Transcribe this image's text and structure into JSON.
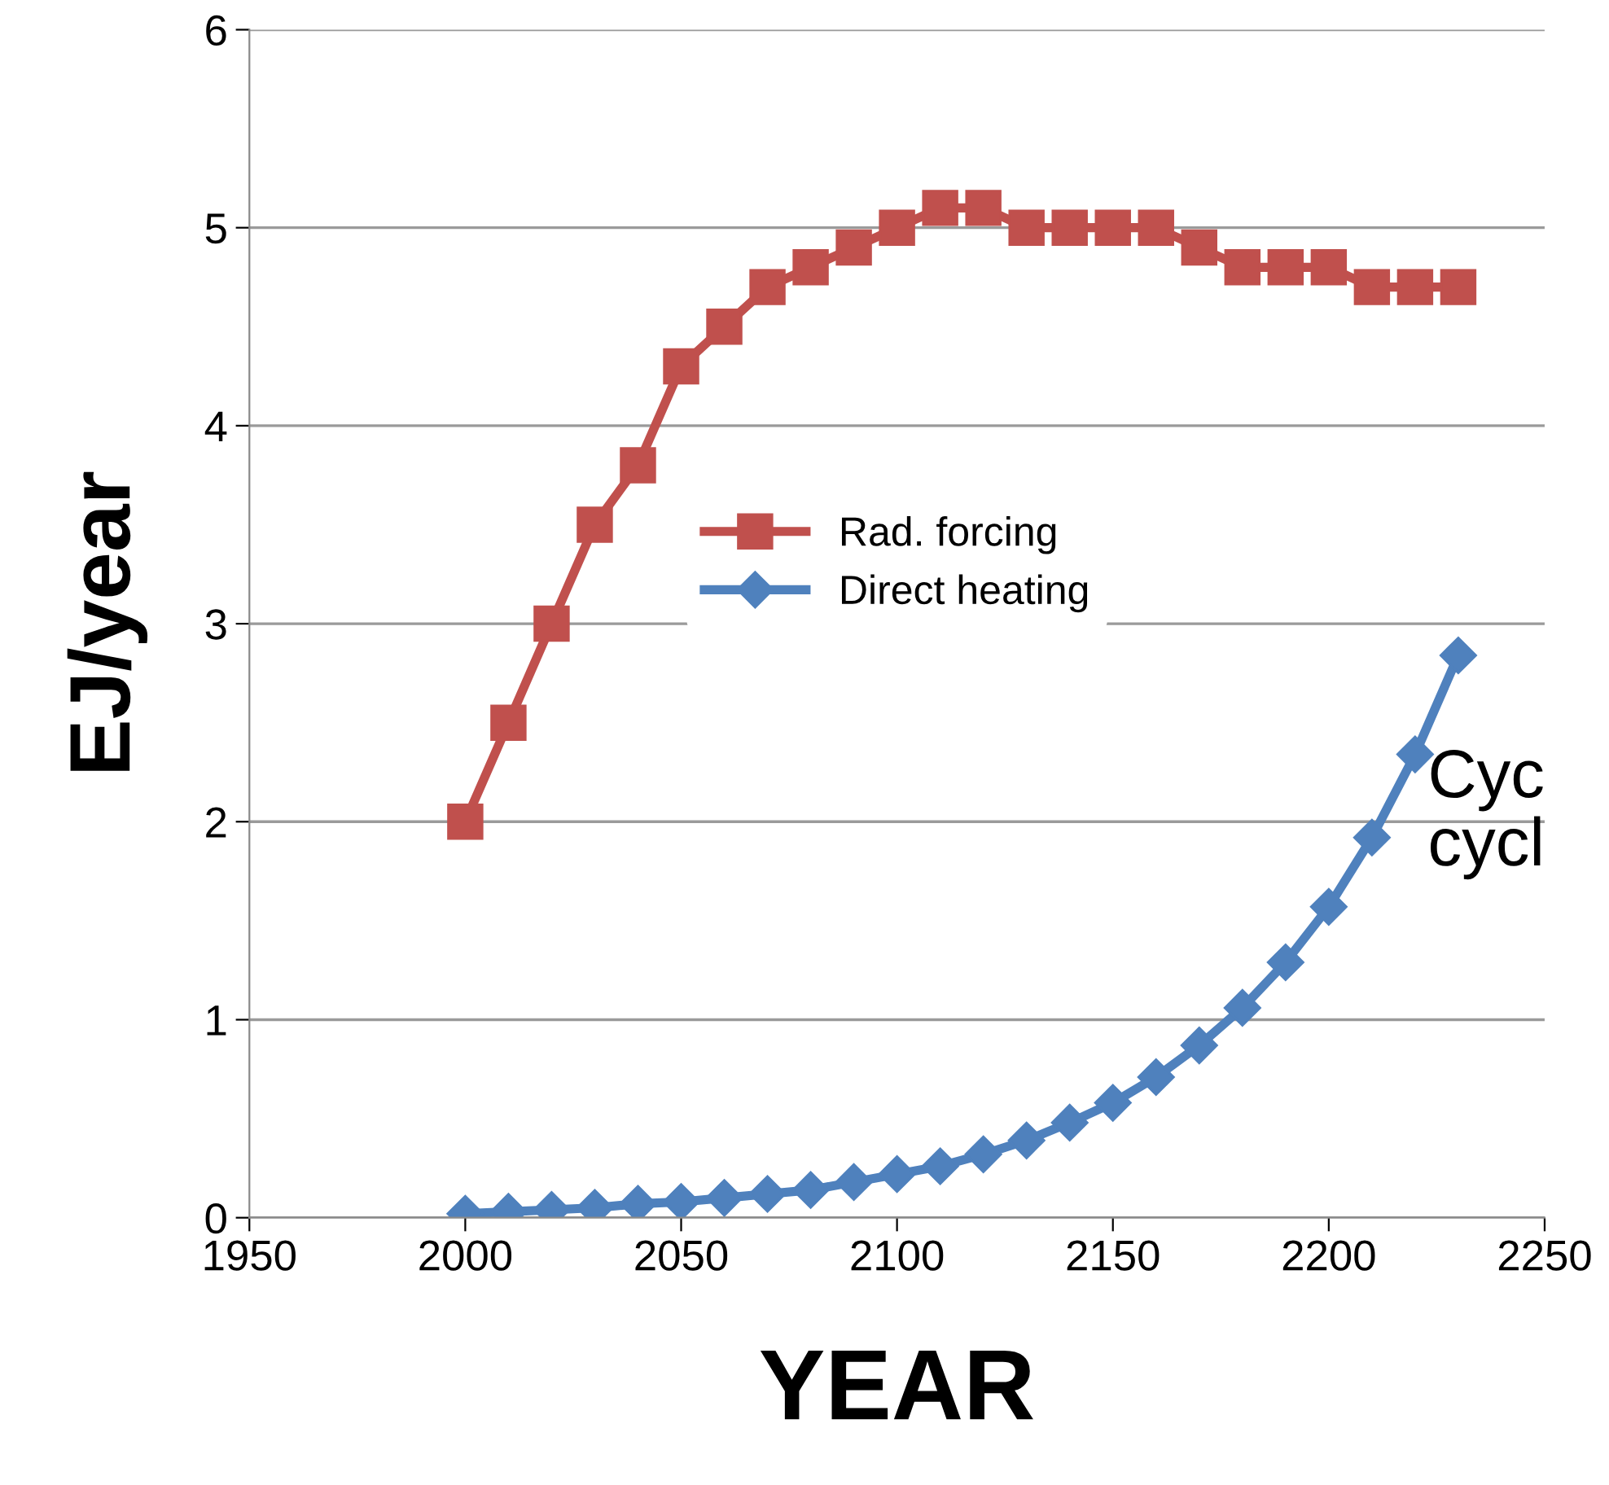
{
  "chart_data": {
    "type": "line",
    "xlabel": "YEAR",
    "ylabel": "EJ/year",
    "x": [
      2000,
      2010,
      2020,
      2030,
      2040,
      2050,
      2060,
      2070,
      2080,
      2090,
      2100,
      2110,
      2120,
      2130,
      2140,
      2150,
      2160,
      2170,
      2180,
      2190,
      2200,
      2210,
      2220,
      2230
    ],
    "series": [
      {
        "name": "Rad. forcing",
        "color": "#c0504d",
        "marker": "square",
        "values": [
          2.0,
          2.5,
          3.0,
          3.5,
          3.8,
          4.3,
          4.5,
          4.7,
          4.8,
          4.9,
          5.0,
          5.1,
          5.1,
          5.0,
          5.0,
          5.0,
          5.0,
          4.9,
          4.8,
          4.8,
          4.8,
          4.7,
          4.7,
          4.7
        ]
      },
      {
        "name": "Direct heating",
        "color": "#4f81bd",
        "marker": "diamond",
        "values": [
          0.02,
          0.03,
          0.04,
          0.05,
          0.07,
          0.08,
          0.1,
          0.12,
          0.14,
          0.18,
          0.22,
          0.26,
          0.32,
          0.39,
          0.48,
          0.58,
          0.71,
          0.87,
          1.06,
          1.29,
          1.57,
          1.92,
          2.34,
          2.84
        ]
      }
    ],
    "xlim": [
      1950,
      2250
    ],
    "xticks": [
      1950,
      2000,
      2050,
      2100,
      2150,
      2200,
      2250
    ],
    "ylim": [
      0,
      6
    ],
    "yticks": [
      0,
      1,
      2,
      3,
      4,
      5,
      6
    ],
    "grid": "y",
    "legend": "center",
    "line_style": "solid",
    "annotations": [
      "Cyc\ncycl"
    ]
  }
}
